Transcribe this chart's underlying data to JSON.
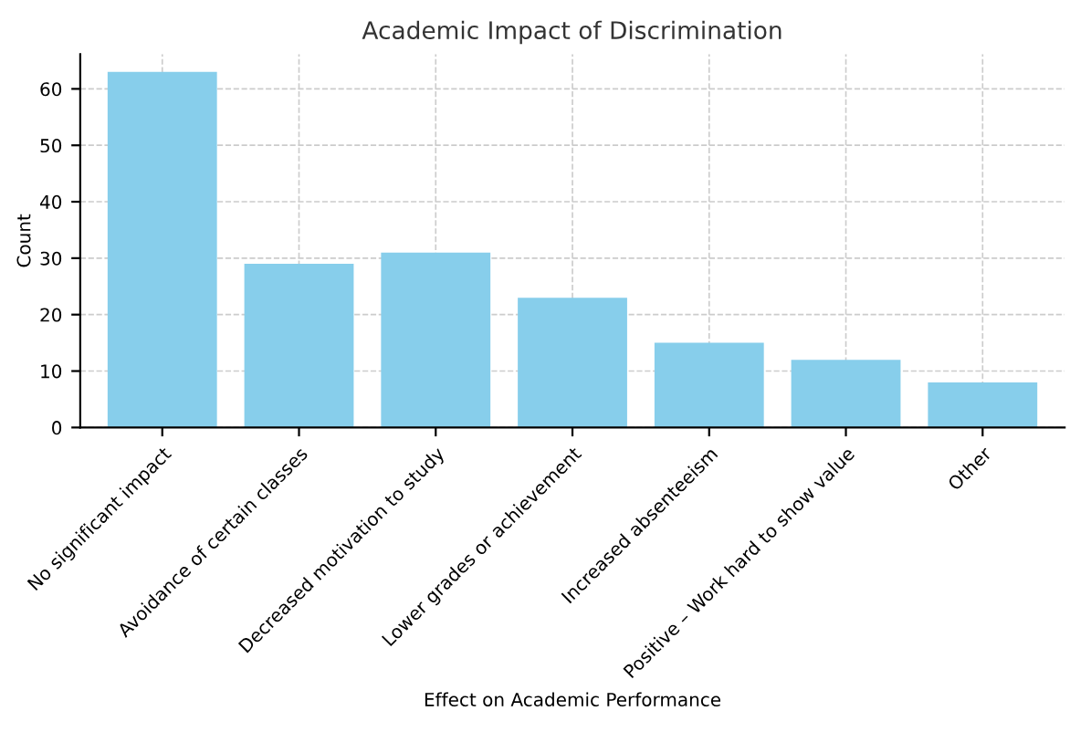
{
  "chart_data": {
    "type": "bar",
    "title": "Academic Impact of Discrimination",
    "xlabel": "Effect on Academic Performance",
    "ylabel": "Count",
    "categories": [
      "No significant impact",
      "Avoidance of certain classes",
      "Decreased motivation to study",
      "Lower grades or achievement",
      "Increased absenteeism",
      "Positive – Work hard to show value",
      "Other"
    ],
    "values": [
      63,
      29,
      31,
      23,
      15,
      12,
      8
    ],
    "color": "#87ceeb",
    "ylim": [
      0,
      66.15
    ],
    "yticks": [
      0,
      10,
      20,
      30,
      40,
      50,
      60
    ],
    "grid": true,
    "legend": false
  }
}
